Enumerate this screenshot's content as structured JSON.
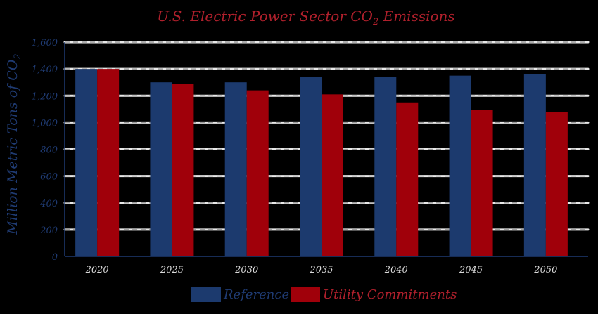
{
  "colors": {
    "background": "#000000",
    "title": "#b0202c",
    "axis_text": "#1f3b73",
    "grid": "#e8e8e8",
    "grid_dash": "#9a9a9a",
    "reference": "#1c3a6e",
    "utility": "#a0000a"
  },
  "chart_data": {
    "type": "bar",
    "title_prefix": "U.S. Electric Power Sector CO",
    "title_subscript": "2",
    "title_suffix": " Emissions",
    "ylabel_prefix": "Million Metric Tons of CO",
    "ylabel_subscript": "2",
    "xlabel": "",
    "categories": [
      "2020",
      "2025",
      "2030",
      "2035",
      "2040",
      "2045",
      "2050"
    ],
    "yticks": [
      "0",
      "200",
      "400",
      "600",
      "800",
      "1,000",
      "1,200",
      "1,400",
      "1,600"
    ],
    "ylim": [
      0,
      1600
    ],
    "grid": true,
    "legend_position": "bottom",
    "series": [
      {
        "name": "Reference",
        "color": "#1c3a6e",
        "values": [
          1400,
          1300,
          1300,
          1340,
          1340,
          1350,
          1360
        ]
      },
      {
        "name": "Utility Commitments",
        "color": "#a0000a",
        "values": [
          1400,
          1290,
          1240,
          1210,
          1150,
          1095,
          1080
        ]
      }
    ]
  }
}
